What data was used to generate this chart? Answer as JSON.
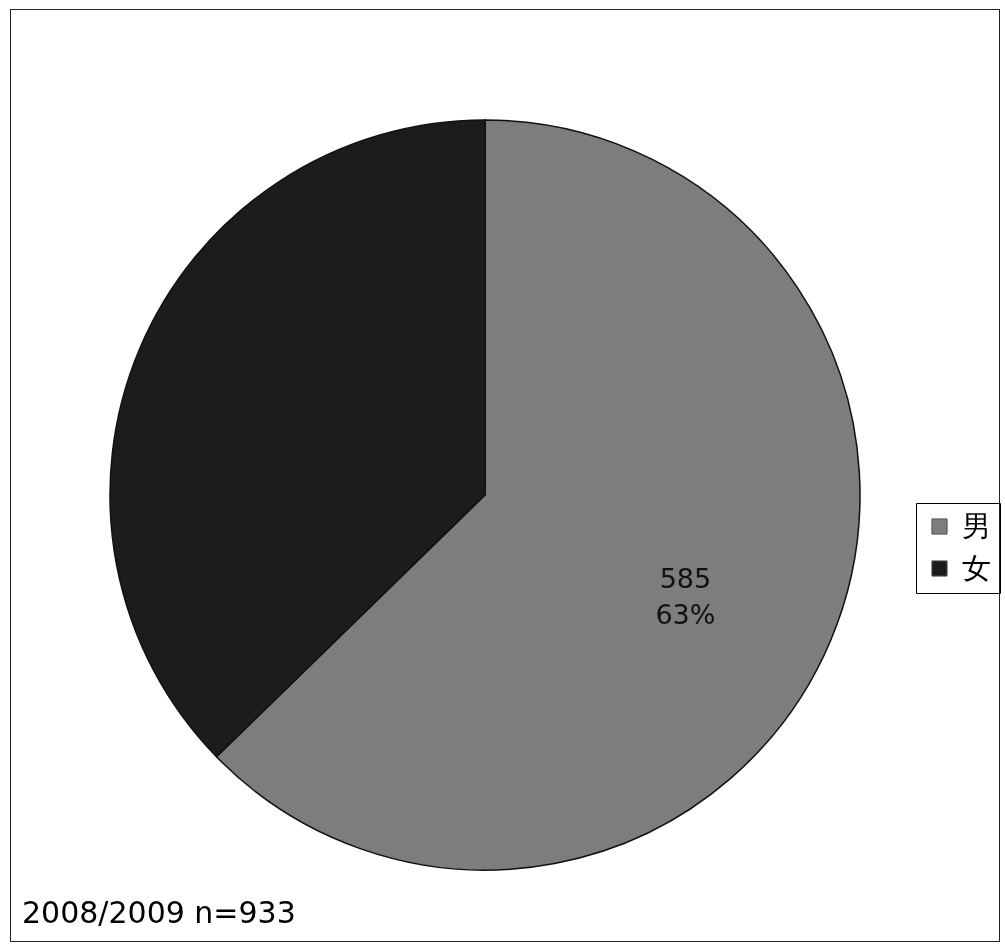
{
  "chart_data": {
    "type": "pie",
    "categories": [
      "男",
      "女"
    ],
    "values": [
      585,
      348
    ],
    "colors": [
      "#7d7d7d",
      "#1c1c1c"
    ],
    "value_labels": [
      "585\n63%",
      null
    ],
    "legend": "right",
    "annotations": [
      "2008/2009 n=933"
    ]
  }
}
